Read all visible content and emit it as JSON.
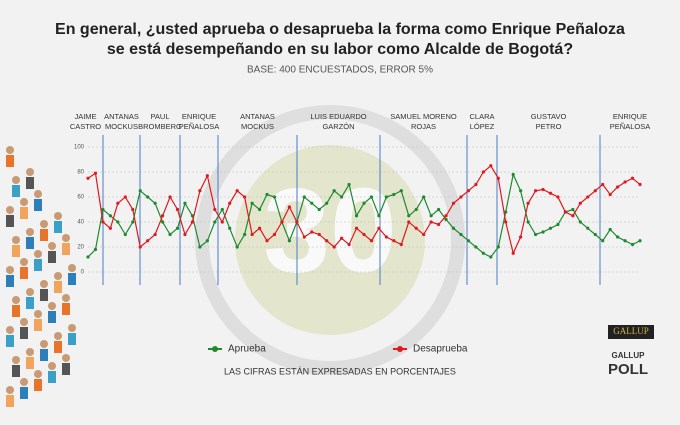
{
  "chart_data": {
    "type": "line",
    "title": [
      "En general, ¿usted aprueba o desaprueba la forma como Enrique Peñaloza",
      "se está desempeñando en su labor como Alcalde de Bogotá?"
    ],
    "subtitle": "BASE: 400 ENCUESTADOS, ERROR 5%",
    "note": "LAS CIFRAS ESTÁN EXPRESADAS EN PORCENTAJES",
    "ylim": [
      0,
      100
    ],
    "yticks": [
      0,
      20,
      40,
      60,
      80,
      100
    ],
    "grid": true,
    "periods": [
      [
        "JAIME",
        "CASTRO"
      ],
      [
        "ANTANAS",
        "MOCKUS"
      ],
      [
        "PAUL",
        "BROMBERG"
      ],
      [
        "ENRIQUE",
        "PEÑALOSA"
      ],
      [
        "ANTANAS",
        "MOCKUS"
      ],
      [
        "LUIS EDUARDO",
        "GARZÓN"
      ],
      [
        "SAMUEL MORENO",
        "ROJAS"
      ],
      [
        "CLARA",
        "LÓPEZ"
      ],
      [
        "GUSTAVO",
        "PETRO"
      ],
      [
        "ENRIQUE",
        "PEÑALOSA"
      ]
    ],
    "series": [
      {
        "name": "Aprueba",
        "color": "#1e8a2e",
        "values": [
          12,
          18,
          50,
          45,
          40,
          30,
          40,
          65,
          60,
          55,
          40,
          30,
          35,
          55,
          45,
          20,
          25,
          40,
          50,
          35,
          20,
          30,
          55,
          50,
          62,
          60,
          40,
          25,
          40,
          60,
          55,
          50,
          55,
          65,
          60,
          70,
          45,
          55,
          60,
          45,
          60,
          62,
          65,
          45,
          50,
          60,
          45,
          50,
          42,
          35,
          30,
          25,
          20,
          15,
          12,
          20,
          48,
          78,
          65,
          40,
          30,
          32,
          35,
          38,
          48,
          50,
          40,
          35,
          30,
          25,
          34,
          28,
          25,
          22,
          25
        ]
      },
      {
        "name": "Desaprueba",
        "color": "#e0191e",
        "values": [
          75,
          79,
          40,
          35,
          55,
          60,
          50,
          20,
          25,
          30,
          45,
          60,
          50,
          30,
          40,
          65,
          77,
          50,
          40,
          55,
          65,
          60,
          30,
          35,
          25,
          30,
          40,
          52,
          40,
          28,
          32,
          30,
          25,
          20,
          27,
          22,
          35,
          30,
          25,
          35,
          28,
          25,
          22,
          40,
          35,
          30,
          40,
          38,
          45,
          55,
          60,
          65,
          70,
          80,
          85,
          75,
          40,
          15,
          28,
          55,
          65,
          66,
          63,
          60,
          48,
          45,
          55,
          60,
          65,
          70,
          62,
          68,
          72,
          75,
          70
        ]
      }
    ]
  },
  "branding": {
    "watermark": "30",
    "logo": "GALLUP",
    "logo2": [
      "GALLUP",
      "POLL"
    ]
  }
}
